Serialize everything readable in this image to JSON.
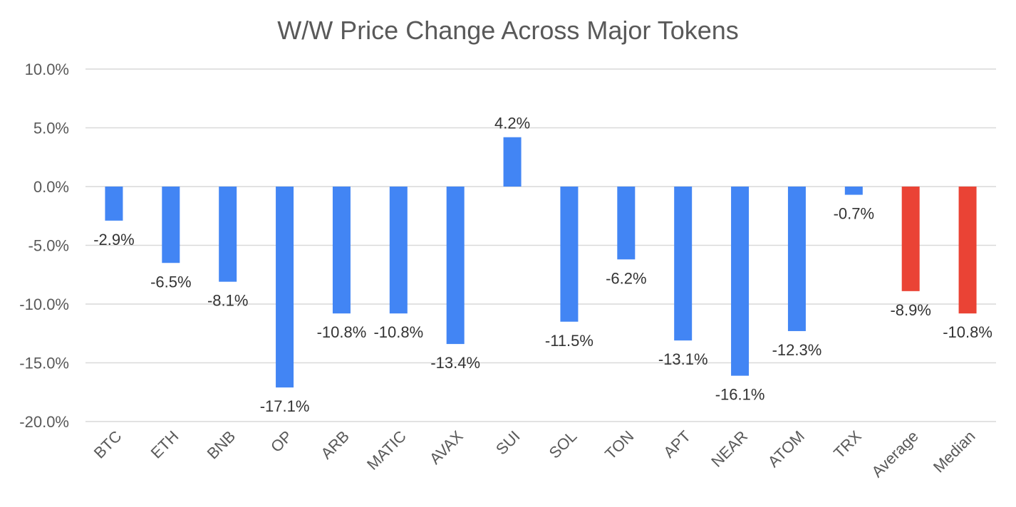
{
  "chart_data": {
    "type": "bar",
    "title": "W/W Price Change Across Major Tokens",
    "xlabel": "",
    "ylabel": "",
    "categories": [
      "BTC",
      "ETH",
      "BNB",
      "OP",
      "ARB",
      "MATIC",
      "AVAX",
      "SUI",
      "SOL",
      "TON",
      "APT",
      "NEAR",
      "ATOM",
      "TRX",
      "Average",
      "Median"
    ],
    "values": [
      -2.9,
      -6.5,
      -8.1,
      -17.1,
      -10.8,
      -10.8,
      -13.4,
      4.2,
      -11.5,
      -6.2,
      -13.1,
      -16.1,
      -12.3,
      -0.7,
      -8.9,
      -10.8
    ],
    "data_labels": [
      "-2.9%",
      "-6.5%",
      "-8.1%",
      "-17.1%",
      "-10.8%",
      "-10.8%",
      "-13.4%",
      "4.2%",
      "-11.5%",
      "-6.2%",
      "-13.1%",
      "-16.1%",
      "-12.3%",
      "-0.7%",
      "-8.9%",
      "-10.8%"
    ],
    "ylim": [
      -20,
      10
    ],
    "yticks": [
      10,
      5,
      0,
      -5,
      -10,
      -15,
      -20
    ],
    "ytick_labels": [
      "10.0%",
      "5.0%",
      "0.0%",
      "-5.0%",
      "-10.0%",
      "-15.0%",
      "-20.0%"
    ],
    "grid": true,
    "legend": "none",
    "colors": {
      "token": "#4285f4",
      "summary": "#ea4335",
      "grid": "#d9d9d9",
      "text": "#595959"
    },
    "summary_categories": [
      "Average",
      "Median"
    ]
  }
}
